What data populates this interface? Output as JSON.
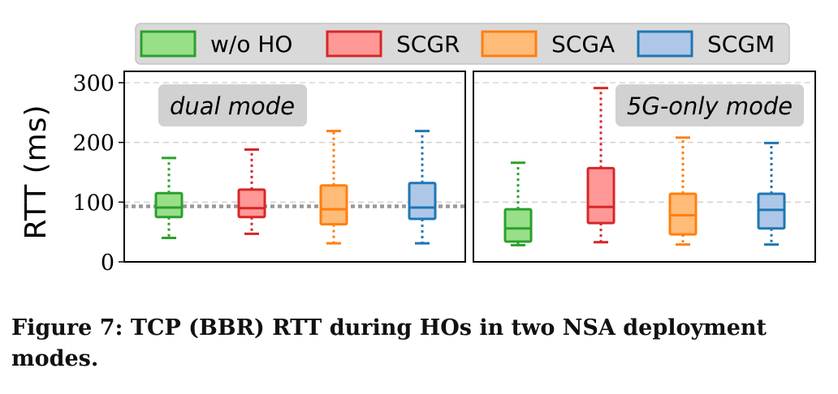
{
  "chart_data": {
    "type": "box",
    "ylabel": "RTT (ms)",
    "ylim": [
      0,
      310
    ],
    "yticks": [
      0,
      100,
      200,
      300
    ],
    "grid": "horizontal dashed",
    "reference_line": 93,
    "legend": {
      "placement": "top",
      "entries": [
        {
          "name": "w/o HO",
          "color": "#2ca02c",
          "fill": "#98df8a"
        },
        {
          "name": "SCGR",
          "color": "#d62728",
          "fill": "#ff9896"
        },
        {
          "name": "SCGA",
          "color": "#ff7f0e",
          "fill": "#ffbb78"
        },
        {
          "name": "SCGM",
          "color": "#1f77b4",
          "fill": "#aec7e8"
        }
      ]
    },
    "panels": [
      {
        "label": "dual mode",
        "label_position": "top-left",
        "boxes": [
          {
            "series": "w/o HO",
            "whisker_low": 40,
            "q1": 75,
            "median": 91,
            "q3": 115,
            "whisker_high": 174
          },
          {
            "series": "SCGR",
            "whisker_low": 47,
            "q1": 75,
            "median": 90,
            "q3": 121,
            "whisker_high": 188
          },
          {
            "series": "SCGA",
            "whisker_low": 31,
            "q1": 63,
            "median": 88,
            "q3": 128,
            "whisker_high": 219
          },
          {
            "series": "SCGM",
            "whisker_low": 31,
            "q1": 72,
            "median": 91,
            "q3": 132,
            "whisker_high": 219
          }
        ]
      },
      {
        "label": "5G-only mode",
        "label_position": "top-right",
        "boxes": [
          {
            "series": "w/o HO",
            "whisker_low": 28,
            "q1": 34,
            "median": 56,
            "q3": 88,
            "whisker_high": 166
          },
          {
            "series": "SCGR",
            "whisker_low": 33,
            "q1": 65,
            "median": 92,
            "q3": 157,
            "whisker_high": 291
          },
          {
            "series": "SCGA",
            "whisker_low": 29,
            "q1": 46,
            "median": 78,
            "q3": 114,
            "whisker_high": 208
          },
          {
            "series": "SCGM",
            "whisker_low": 29,
            "q1": 56,
            "median": 87,
            "q3": 114,
            "whisker_high": 199
          }
        ]
      }
    ]
  },
  "caption": "Figure 7: TCP (BBR) RTT during HOs in two NSA deployment modes."
}
